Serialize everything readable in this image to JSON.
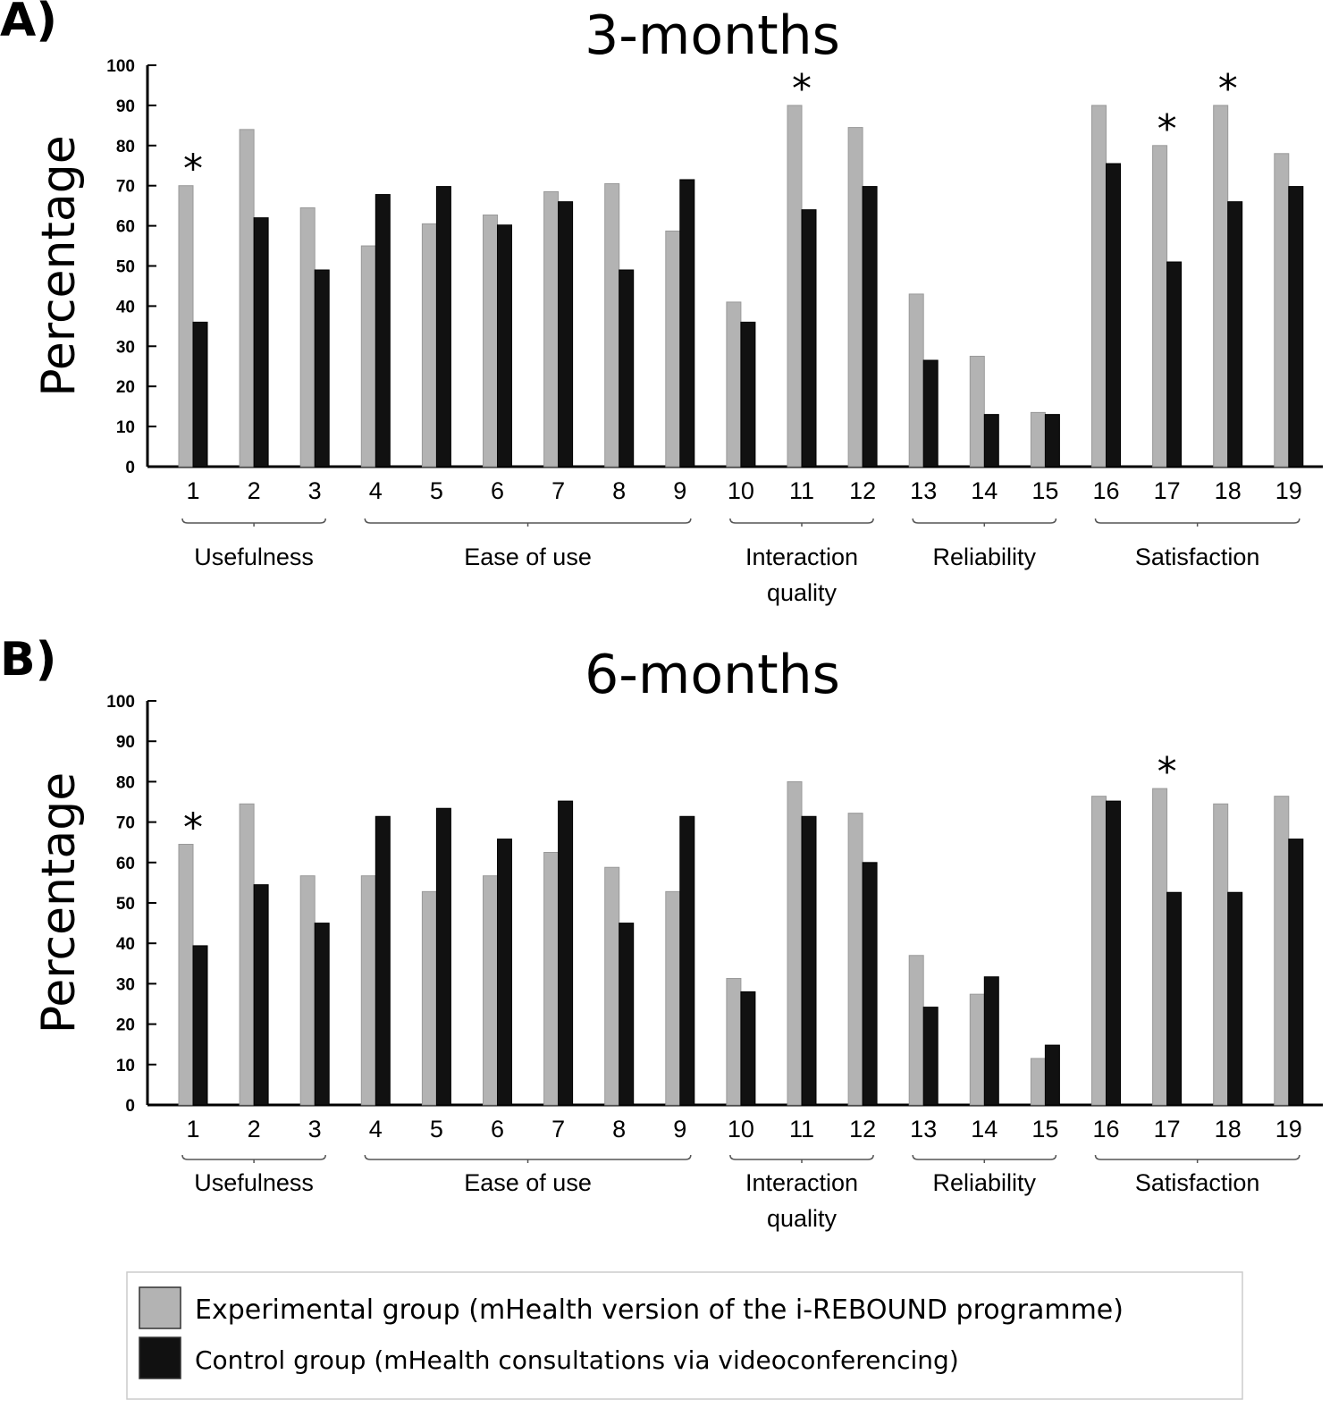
{
  "colors": {
    "experimental": "#b3b3b3",
    "control": "#111111"
  },
  "legend": {
    "items": [
      {
        "label": "Experimental group (mHealth version of the i-REBOUND programme)",
        "color": "#b3b3b3"
      },
      {
        "label": "Control group (mHealth consultations via videoconferencing)",
        "color": "#111111"
      }
    ]
  },
  "chart_data": [
    {
      "type": "bar",
      "panel_label": "A)",
      "title": "3-months",
      "ylabel": "Percentage",
      "ylim": [
        0,
        100
      ],
      "yticks": [
        0,
        10,
        20,
        30,
        40,
        50,
        60,
        70,
        80,
        90,
        100
      ],
      "categories": [
        "1",
        "2",
        "3",
        "4",
        "5",
        "6",
        "7",
        "8",
        "9",
        "10",
        "11",
        "12",
        "13",
        "14",
        "15",
        "16",
        "17",
        "18",
        "19"
      ],
      "groups": [
        {
          "label": "Usefulness",
          "items": [
            1,
            3
          ]
        },
        {
          "label": "Ease of use",
          "items": [
            4,
            9
          ]
        },
        {
          "label": "Interaction quality",
          "items": [
            10,
            12
          ]
        },
        {
          "label": "Reliability",
          "items": [
            13,
            15
          ]
        },
        {
          "label": "Satisfaction",
          "items": [
            16,
            19
          ]
        }
      ],
      "series": [
        {
          "name": "Experimental group (mHealth version of the i-REBOUND programme)",
          "values": [
            70,
            84,
            64.5,
            55,
            60.5,
            62.7,
            68.5,
            70.5,
            58.7,
            41,
            90,
            84.5,
            43,
            27.5,
            13.5,
            90,
            80,
            90,
            78
          ]
        },
        {
          "name": "Control group (mHealth consultations via videoconferencing)",
          "values": [
            36,
            62,
            49,
            67.8,
            69.8,
            60.2,
            66,
            49,
            71.5,
            36,
            64,
            69.8,
            26.5,
            13,
            13,
            75.5,
            51,
            66,
            69.8
          ]
        }
      ],
      "significant": [
        "1",
        "11",
        "17",
        "18"
      ],
      "significance_marker": "*",
      "grid": false
    },
    {
      "type": "bar",
      "panel_label": "B)",
      "title": "6-months",
      "ylabel": "Percentage",
      "ylim": [
        0,
        100
      ],
      "yticks": [
        0,
        10,
        20,
        30,
        40,
        50,
        60,
        70,
        80,
        90,
        100
      ],
      "categories": [
        "1",
        "2",
        "3",
        "4",
        "5",
        "6",
        "7",
        "8",
        "9",
        "10",
        "11",
        "12",
        "13",
        "14",
        "15",
        "16",
        "17",
        "18",
        "19"
      ],
      "groups": [
        {
          "label": "Usefulness",
          "items": [
            1,
            3
          ]
        },
        {
          "label": "Ease of use",
          "items": [
            4,
            9
          ]
        },
        {
          "label": "Interaction quality",
          "items": [
            10,
            12
          ]
        },
        {
          "label": "Reliability",
          "items": [
            13,
            15
          ]
        },
        {
          "label": "Satisfaction",
          "items": [
            16,
            19
          ]
        }
      ],
      "series": [
        {
          "name": "Experimental group (mHealth version of the i-REBOUND programme)",
          "values": [
            64.5,
            74.5,
            56.7,
            56.7,
            52.8,
            56.7,
            62.5,
            58.8,
            52.8,
            31.3,
            80,
            72.2,
            37,
            27.4,
            11.5,
            76.4,
            78.3,
            74.5,
            76.4
          ]
        },
        {
          "name": "Control group (mHealth consultations via videoconferencing)",
          "values": [
            39.4,
            54.5,
            45,
            71.4,
            73.4,
            65.8,
            75.2,
            45,
            71.4,
            28,
            71.4,
            60,
            24.2,
            31.7,
            14.8,
            75.2,
            52.6,
            52.6,
            65.8
          ]
        }
      ],
      "significant": [
        "1",
        "17"
      ],
      "significance_marker": "*",
      "grid": false
    }
  ]
}
